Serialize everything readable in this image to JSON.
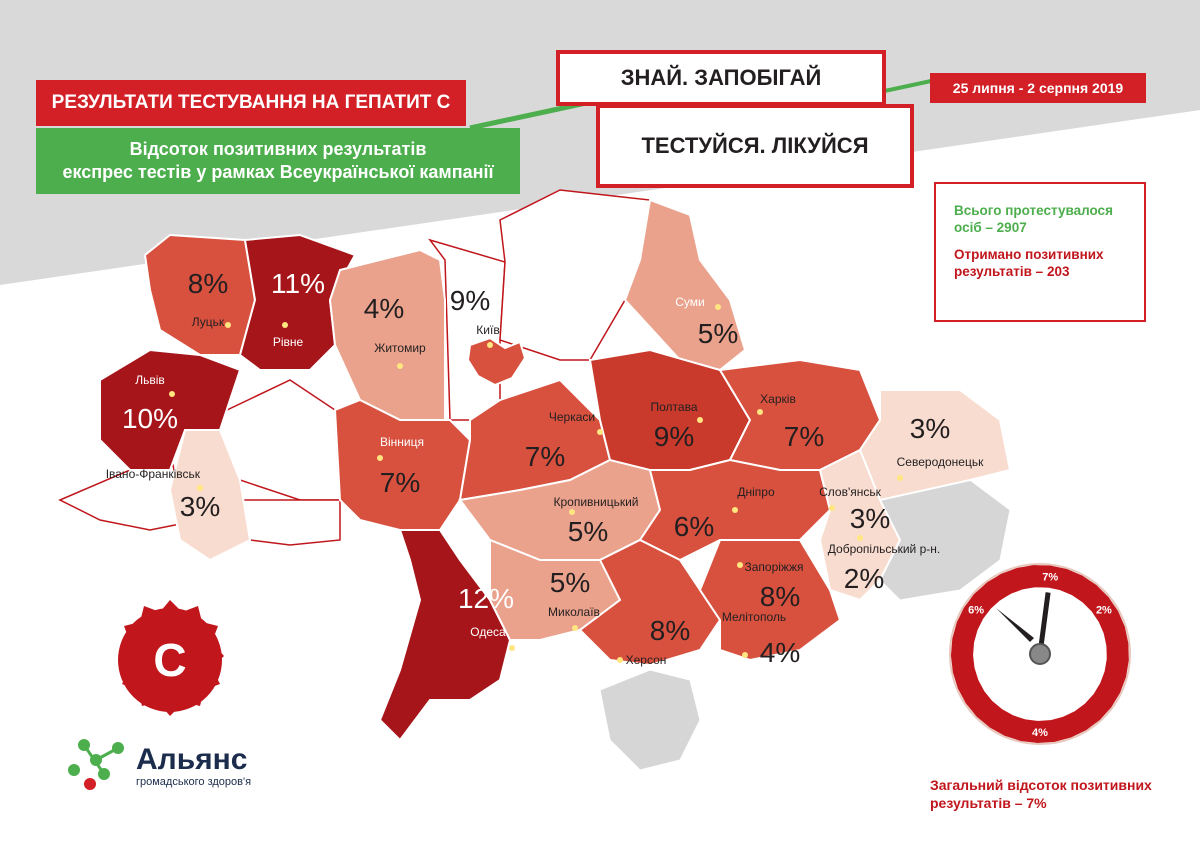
{
  "header": {
    "title": "РЕЗУЛЬТАТИ ТЕСТУВАННЯ НА ГЕПАТИТ С",
    "subtitle_line1": "Відсоток позитивних результатів",
    "subtitle_line2": "експрес тестів у рамках Всеукраїнської кампанії",
    "slogan1": "ЗНАЙ. ЗАПОБІГАЙ",
    "slogan2": "ТЕСТУЙСЯ. ЛІКУЙСЯ",
    "dates": "25 липня - 2 серпня 2019"
  },
  "stats": {
    "total": "Всього протестувалося осіб – 2907",
    "positive": "Отримано позитивних результатів – 203"
  },
  "overall": {
    "text": "Загальний відсоток позитивних результатів – 7%",
    "value_percent": 7,
    "gauge_ticks": [
      "2%",
      "4%",
      "6%",
      "7%"
    ]
  },
  "logo": {
    "name": "Альянс",
    "sub": "громадського здоров'я",
    "badge": "C"
  },
  "colors": {
    "red": "#d31f26",
    "green": "#4cae4c",
    "dark_region": "#a5151a",
    "mid_region": "#d8513f",
    "light_region": "#eaa28c",
    "pale_region": "#f8dccf",
    "occupied": "#d6d6d6"
  },
  "regions": [
    {
      "city": "Луцьк",
      "percent": "8%"
    },
    {
      "city": "Рівне",
      "percent": "11%"
    },
    {
      "city": "Житомир",
      "percent": "4%"
    },
    {
      "city": "Київ",
      "percent": "9%"
    },
    {
      "city": "Суми",
      "percent": "5%"
    },
    {
      "city": "Львів",
      "percent": "10%"
    },
    {
      "city": "Івано-Франківськ",
      "percent": "3%"
    },
    {
      "city": "Вінниця",
      "percent": "7%"
    },
    {
      "city": "Черкаси",
      "percent": "7%"
    },
    {
      "city": "Полтава",
      "percent": "9%"
    },
    {
      "city": "Харків",
      "percent": "7%"
    },
    {
      "city": "Северодонецьк",
      "percent": "3%"
    },
    {
      "city": "Кропивницький",
      "percent": "5%"
    },
    {
      "city": "Дніпро",
      "percent": "6%"
    },
    {
      "city": "Слов'янськ",
      "percent": "3%"
    },
    {
      "city": "Добропільський р-н.",
      "percent": "2%"
    },
    {
      "city": "Одеса",
      "percent": "12%"
    },
    {
      "city": "Миколаїв",
      "percent": "5%"
    },
    {
      "city": "Херсон",
      "percent": "8%"
    },
    {
      "city": "Запоріжжя",
      "percent": "8%"
    },
    {
      "city": "Мелітополь",
      "percent": "4%"
    }
  ]
}
